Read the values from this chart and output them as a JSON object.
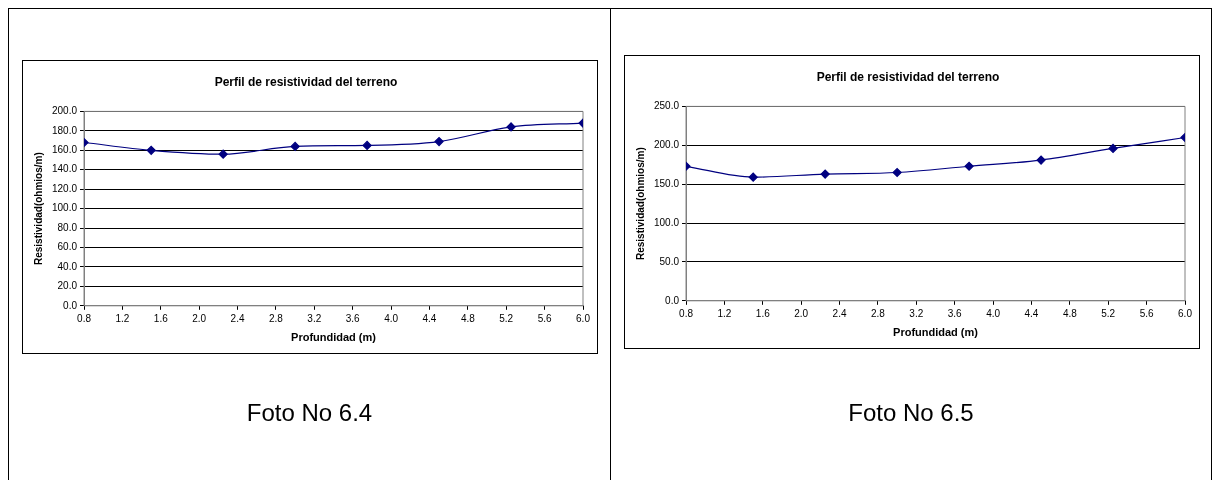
{
  "chart_data": [
    {
      "type": "line",
      "title": "Perfil de resistividad del terreno",
      "xlabel": "Profundidad (m)",
      "ylabel": "Resistividad(ohmios/m)",
      "series": [
        {
          "color": "#000080",
          "x": [
            0.8,
            1.5,
            2.25,
            3,
            3.75,
            4.5,
            5.25,
            6
          ],
          "values": [
            168,
            160,
            156,
            164,
            165,
            169,
            184,
            188
          ]
        }
      ],
      "xlim": [
        0.8,
        6
      ],
      "xticks": [
        {
          "value": 0.8,
          "label": "0.8"
        },
        {
          "value": 1.2,
          "label": "1.2"
        },
        {
          "value": 1.6,
          "label": "1.6"
        },
        {
          "value": 2,
          "label": "2.0"
        },
        {
          "value": 2.4,
          "label": "2.4"
        },
        {
          "value": 2.8,
          "label": "2.8"
        },
        {
          "value": 3.2,
          "label": "3.2"
        },
        {
          "value": 3.6,
          "label": "3.6"
        },
        {
          "value": 4,
          "label": "4.0"
        },
        {
          "value": 4.4,
          "label": "4.4"
        },
        {
          "value": 4.8,
          "label": "4.8"
        },
        {
          "value": 5.2,
          "label": "5.2"
        },
        {
          "value": 5.6,
          "label": "5.6"
        },
        {
          "value": 6,
          "label": "6.0"
        }
      ],
      "ylim": [
        0,
        200
      ],
      "yticks": [
        {
          "value": 0,
          "label": "0.0"
        },
        {
          "value": 20,
          "label": "20.0"
        },
        {
          "value": 40,
          "label": "40.0"
        },
        {
          "value": 60,
          "label": "60.0"
        },
        {
          "value": 80,
          "label": "80.0"
        },
        {
          "value": 100,
          "label": "100.0"
        },
        {
          "value": 120,
          "label": "120.0"
        },
        {
          "value": 140,
          "label": "140.0"
        },
        {
          "value": 160,
          "label": "160.0"
        },
        {
          "value": 180,
          "label": "180.0"
        },
        {
          "value": 200,
          "label": "200.0"
        }
      ],
      "grid": "y",
      "marker": "diamond",
      "annotations": [
        "Foto No 6.4"
      ]
    },
    {
      "type": "line",
      "title": "Perfil de resistividad del terreno",
      "xlabel": "Profundidad (m)",
      "ylabel": "Resistividad(ohmios/m)",
      "series": [
        {
          "color": "#000080",
          "x": [
            0.8,
            1.5,
            2.25,
            3,
            3.75,
            4.5,
            5.25,
            6
          ],
          "values": [
            173,
            159,
            163,
            165,
            173,
            181,
            196,
            210
          ]
        }
      ],
      "xlim": [
        0.8,
        6
      ],
      "xticks": [
        {
          "value": 0.8,
          "label": "0.8"
        },
        {
          "value": 1.2,
          "label": "1.2"
        },
        {
          "value": 1.6,
          "label": "1.6"
        },
        {
          "value": 2,
          "label": "2.0"
        },
        {
          "value": 2.4,
          "label": "2.4"
        },
        {
          "value": 2.8,
          "label": "2.8"
        },
        {
          "value": 3.2,
          "label": "3.2"
        },
        {
          "value": 3.6,
          "label": "3.6"
        },
        {
          "value": 4,
          "label": "4.0"
        },
        {
          "value": 4.4,
          "label": "4.4"
        },
        {
          "value": 4.8,
          "label": "4.8"
        },
        {
          "value": 5.2,
          "label": "5.2"
        },
        {
          "value": 5.6,
          "label": "5.6"
        },
        {
          "value": 6,
          "label": "6.0"
        }
      ],
      "ylim": [
        0,
        250
      ],
      "yticks": [
        {
          "value": 0,
          "label": "0.0"
        },
        {
          "value": 50,
          "label": "50.0"
        },
        {
          "value": 100,
          "label": "100.0"
        },
        {
          "value": 150,
          "label": "150.0"
        },
        {
          "value": 200,
          "label": "200.0"
        },
        {
          "value": 250,
          "label": "250.0"
        }
      ],
      "grid": "y",
      "marker": "diamond",
      "annotations": [
        "Foto No 6.5"
      ]
    }
  ]
}
